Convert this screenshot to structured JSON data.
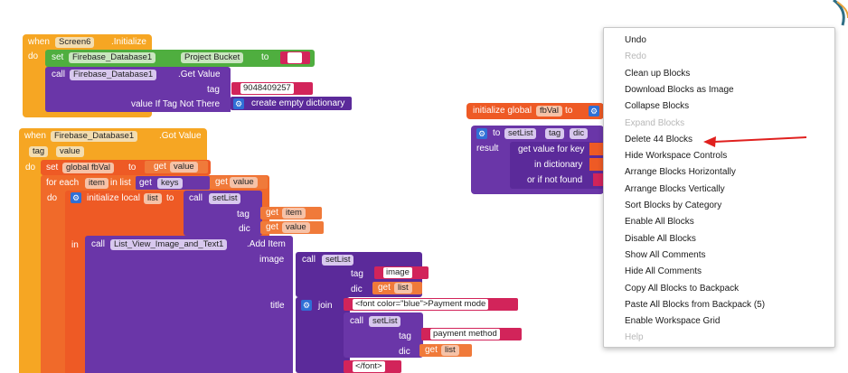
{
  "event1": {
    "when": "when",
    "component": "Screen6",
    "event": ".Initialize",
    "do": "do",
    "set": "set",
    "set_component": "Firebase_Database1",
    "set_prop": "Project Bucket",
    "to": "to",
    "call": "call",
    "call_component": "Firebase_Database1",
    "call_method": ".Get Value",
    "tag_label": "tag",
    "tag_value": "9048409257",
    "vitn_label": "value If Tag Not There",
    "empty_dict": "create empty dictionary"
  },
  "global_init": {
    "label": "initialize global",
    "name": "fbVal",
    "to": "to"
  },
  "proc": {
    "to": "to",
    "name": "setList",
    "param1": "tag",
    "param2": "dic",
    "result": "result",
    "gv_label": "get value for key",
    "in_dict": "in dictionary",
    "if_not_found": "or if not found"
  },
  "event2": {
    "when": "when",
    "component": "Firebase_Database1",
    "event": ".Got Value",
    "param1": "tag",
    "param2": "value",
    "do": "do",
    "set": "set",
    "var": "global fbVal",
    "to": "to",
    "get": "get",
    "get_value": "value",
    "foreach": "for each",
    "item": "item",
    "inlist": "in list",
    "keys": "keys",
    "do2": "do",
    "init_local": "initialize local",
    "local_name": "list",
    "call": "call",
    "setList": "setList",
    "tag_label": "tag",
    "item_var": "item",
    "dic_label": "dic",
    "value_var": "value",
    "in": "in",
    "add_component": "List_View_Image_and_Text1",
    "add_method": ".Add Item",
    "image_label": "image",
    "image_str": "image",
    "list_var": "list",
    "title_label": "title",
    "join": "join",
    "font_str": "<font color=\"blue\">Payment mode",
    "payment_str": "payment method",
    "close_font": "</font>"
  },
  "menu": {
    "items": [
      {
        "label": "Undo",
        "enabled": true
      },
      {
        "label": "Redo",
        "enabled": false
      },
      {
        "label": "Clean up Blocks",
        "enabled": true
      },
      {
        "label": "Download Blocks as Image",
        "enabled": true
      },
      {
        "label": "Collapse Blocks",
        "enabled": true
      },
      {
        "label": "Expand Blocks",
        "enabled": false
      },
      {
        "label": "Delete 44 Blocks",
        "enabled": true
      },
      {
        "label": "Hide Workspace Controls",
        "enabled": true
      },
      {
        "label": "Arrange Blocks Horizontally",
        "enabled": true
      },
      {
        "label": "Arrange Blocks Vertically",
        "enabled": true
      },
      {
        "label": "Sort Blocks by Category",
        "enabled": true
      },
      {
        "label": "Enable All Blocks",
        "enabled": true
      },
      {
        "label": "Disable All Blocks",
        "enabled": true
      },
      {
        "label": "Show All Comments",
        "enabled": true
      },
      {
        "label": "Hide All Comments",
        "enabled": true
      },
      {
        "label": "Copy All Blocks to Backpack",
        "enabled": true
      },
      {
        "label": "Paste All Blocks from Backpack (5)",
        "enabled": true
      },
      {
        "label": "Enable Workspace Grid",
        "enabled": true
      },
      {
        "label": "Help",
        "enabled": false
      }
    ]
  },
  "colors": {
    "event": "#f6a623",
    "set_component": "#4fae3f",
    "procedure": "#6a36a8",
    "variable": "#ee5a25",
    "text": "#d2245a",
    "arrow": "#e0201e"
  },
  "icons": {
    "gear": "gear-icon",
    "arrow": "red-arrow-annotation"
  }
}
